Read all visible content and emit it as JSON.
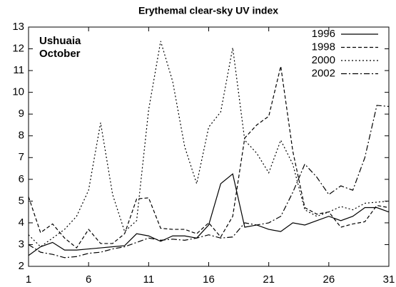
{
  "chart_data": {
    "type": "line",
    "title": "Erythemal clear-sky UV index",
    "annotations": [
      "Ushuaia",
      "October"
    ],
    "x": [
      1,
      2,
      3,
      4,
      5,
      6,
      7,
      8,
      9,
      10,
      11,
      12,
      13,
      14,
      15,
      16,
      17,
      18,
      19,
      20,
      21,
      22,
      23,
      24,
      25,
      26,
      27,
      28,
      29,
      30,
      31
    ],
    "xlim": [
      1,
      31
    ],
    "xticks": [
      1,
      6,
      11,
      16,
      21,
      26,
      31
    ],
    "ylim": [
      2,
      13
    ],
    "yticks": [
      2,
      3,
      4,
      5,
      6,
      7,
      8,
      9,
      10,
      11,
      12,
      13
    ],
    "grid": false,
    "legend": "upper right",
    "series": [
      {
        "name": "1996",
        "color": "#000000",
        "style": "solid",
        "values": [
          2.5,
          2.9,
          3.1,
          2.75,
          2.75,
          2.8,
          2.85,
          2.9,
          2.95,
          3.5,
          3.4,
          3.15,
          3.4,
          3.4,
          3.3,
          3.9,
          5.8,
          6.25,
          3.8,
          3.9,
          3.7,
          3.6,
          4.0,
          3.9,
          4.1,
          4.3,
          4.1,
          4.3,
          4.7,
          4.7,
          4.5
        ]
      },
      {
        "name": "1998",
        "color": "#000000",
        "style": "dashed",
        "values": [
          5.2,
          3.55,
          3.95,
          3.3,
          2.85,
          3.7,
          3.05,
          3.05,
          3.5,
          5.1,
          5.15,
          3.75,
          3.7,
          3.7,
          3.5,
          4.0,
          3.35,
          4.3,
          7.9,
          8.5,
          8.9,
          11.2,
          7.3,
          4.7,
          4.4,
          4.5,
          3.8,
          3.95,
          4.05,
          4.8,
          4.7
        ]
      },
      {
        "name": "2000",
        "color": "#000000",
        "style": "dotted",
        "values": [
          3.45,
          2.9,
          3.3,
          3.7,
          4.3,
          5.5,
          8.6,
          5.3,
          3.6,
          4.1,
          9.2,
          12.35,
          10.5,
          7.5,
          5.8,
          8.4,
          9.1,
          12.05,
          7.8,
          7.2,
          6.3,
          7.8,
          6.7,
          4.6,
          4.3,
          4.5,
          4.75,
          4.6,
          4.9,
          4.95,
          5.0
        ]
      },
      {
        "name": "2002",
        "color": "#000000",
        "style": "dashdot",
        "values": [
          3.0,
          2.65,
          2.55,
          2.4,
          2.45,
          2.6,
          2.65,
          2.8,
          2.9,
          3.1,
          3.3,
          3.2,
          3.25,
          3.2,
          3.3,
          3.45,
          3.3,
          3.35,
          4.0,
          3.9,
          4.0,
          4.3,
          5.4,
          6.7,
          6.1,
          5.3,
          5.7,
          5.5,
          7.0,
          9.4,
          9.35
        ]
      }
    ]
  }
}
